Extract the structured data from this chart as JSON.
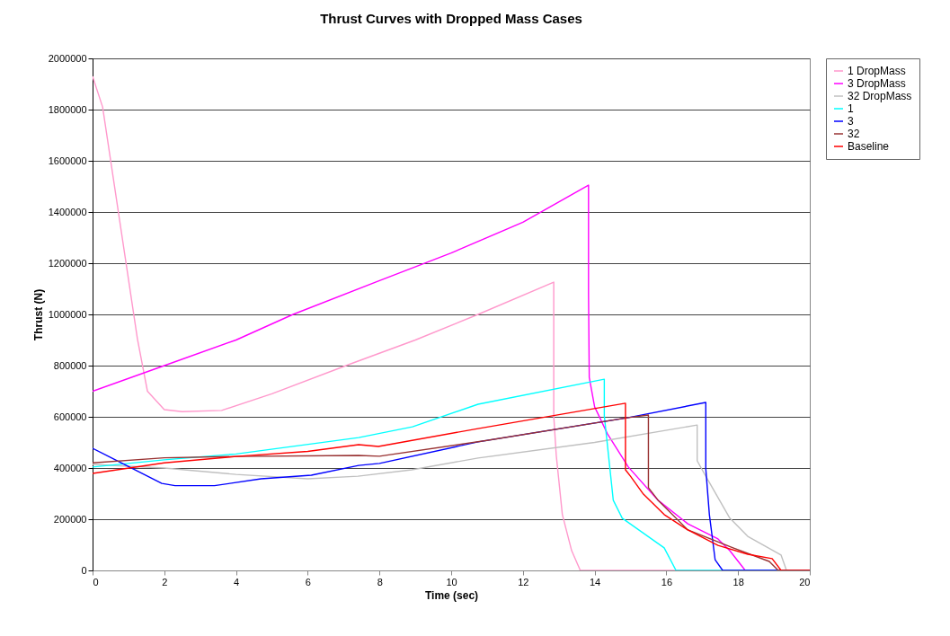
{
  "chart_data": {
    "type": "line",
    "title": "Thrust Curves with Dropped Mass Cases",
    "xlabel": "Time (sec)",
    "ylabel": "Thrust (N)",
    "xlim": [
      0,
      20
    ],
    "xticks": [
      0,
      2,
      4,
      6,
      8,
      10,
      12,
      14,
      16,
      18,
      20
    ],
    "ylim": [
      0,
      2000000
    ],
    "yticks": [
      0,
      200000,
      400000,
      600000,
      800000,
      1000000,
      1200000,
      1400000,
      1600000,
      1800000,
      2000000
    ],
    "grid": "y",
    "legend": "right",
    "series": [
      {
        "name": "1 DropMass",
        "color": "#ff99cc",
        "x": [
          0,
          0.28,
          1.25,
          1.53,
          2,
          2.5,
          3.6,
          5,
          7.2,
          9,
          10.75,
          12.86,
          12.86,
          12.93,
          13.1,
          13.36,
          13.6,
          20
        ],
        "values": [
          1930000,
          1810000,
          905000,
          700000,
          628000,
          620000,
          625000,
          690000,
          807000,
          900000,
          1000000,
          1126000,
          603000,
          450000,
          218000,
          77000,
          0,
          0
        ]
      },
      {
        "name": "3 DropMass",
        "color": "#ff00ff",
        "x": [
          0,
          2,
          4,
          5.59,
          7.97,
          10,
          12,
          13.83,
          13.83,
          13.85,
          14,
          14.36,
          14.94,
          15.77,
          16.6,
          17.44,
          17.77,
          18.2,
          20
        ],
        "values": [
          700000,
          800000,
          900000,
          1000000,
          1130000,
          1240000,
          1360000,
          1505000,
          1081000,
          754000,
          639000,
          533000,
          404000,
          274000,
          182000,
          123000,
          77000,
          0,
          0
        ]
      },
      {
        "name": "32 DropMass",
        "color": "#c0c0c0",
        "x": [
          0,
          2,
          4,
          6,
          7.4,
          8.9,
          10.75,
          14,
          16.86,
          16.86,
          17.1,
          17.77,
          18.27,
          19.2,
          19.28,
          19.35,
          20
        ],
        "values": [
          414000,
          400000,
          375000,
          358000,
          368000,
          393000,
          439000,
          500000,
          568000,
          428000,
          368000,
          204000,
          133000,
          60000,
          28000,
          0,
          0
        ]
      },
      {
        "name": "1",
        "color": "#00ffff",
        "x": [
          0,
          2,
          4,
          7.42,
          8.92,
          10.75,
          14.27,
          14.27,
          14.52,
          14.77,
          15.94,
          16.27,
          20
        ],
        "values": [
          404000,
          432000,
          455000,
          519000,
          561000,
          649000,
          747000,
          604000,
          274000,
          204000,
          88000,
          0,
          0
        ]
      },
      {
        "name": "3",
        "color": "#0000ff",
        "x": [
          0,
          1.93,
          2.3,
          3.4,
          4.7,
          6.1,
          7.42,
          8,
          10.75,
          14.94,
          17.1,
          17.1,
          17.2,
          17.36,
          17.57,
          20
        ],
        "values": [
          477000,
          340000,
          331000,
          331000,
          358000,
          372000,
          410000,
          418000,
          502000,
          597000,
          656000,
          397000,
          218000,
          42000,
          0,
          0
        ]
      },
      {
        "name": "32",
        "color": "#993333",
        "x": [
          0,
          2,
          4,
          7.42,
          8,
          11,
          14.94,
          15.5,
          15.5,
          15.77,
          16.6,
          17.86,
          18.87,
          19.12,
          20
        ],
        "values": [
          420000,
          440000,
          445000,
          449000,
          446000,
          508000,
          597000,
          607000,
          323000,
          274000,
          158000,
          88000,
          35000,
          0,
          0
        ]
      },
      {
        "name": "Baseline",
        "color": "#ff0000",
        "x": [
          0,
          2,
          4,
          6,
          7.42,
          7.97,
          10.75,
          14.86,
          14.86,
          15,
          15.36,
          15.94,
          16.6,
          17.44,
          18.27,
          18.95,
          19.2,
          20
        ],
        "values": [
          379000,
          420000,
          445000,
          465000,
          491000,
          484000,
          554000,
          653000,
          393000,
          368000,
          298000,
          218000,
          158000,
          98000,
          63000,
          46000,
          0,
          0
        ]
      }
    ]
  }
}
